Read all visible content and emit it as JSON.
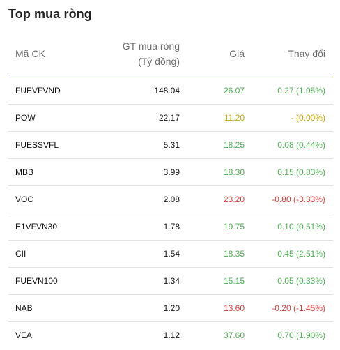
{
  "widget": {
    "title": "Top mua ròng",
    "headers": {
      "code": "Mã CK",
      "value_line1": "GT mua ròng",
      "value_line2": "(Tỷ đồng)",
      "price": "Giá",
      "change": "Thay đổi"
    },
    "colors": {
      "up": "#4caf50",
      "down": "#e53935",
      "ref": "#c9a400",
      "header_rule": "#3a3f8a"
    },
    "rows": [
      {
        "code": "FUEVFVND",
        "value": "148.04",
        "price": "26.07",
        "change": "0.27 (1.05%)",
        "trend": "up"
      },
      {
        "code": "POW",
        "value": "22.17",
        "price": "11.20",
        "change": "- (0.00%)",
        "trend": "ref"
      },
      {
        "code": "FUESSVFL",
        "value": "5.31",
        "price": "18.25",
        "change": "0.08 (0.44%)",
        "trend": "up"
      },
      {
        "code": "MBB",
        "value": "3.99",
        "price": "18.30",
        "change": "0.15 (0.83%)",
        "trend": "up"
      },
      {
        "code": "VOC",
        "value": "2.08",
        "price": "23.20",
        "change": "-0.80 (-3.33%)",
        "trend": "down"
      },
      {
        "code": "E1VFVN30",
        "value": "1.78",
        "price": "19.75",
        "change": "0.10 (0.51%)",
        "trend": "up"
      },
      {
        "code": "CII",
        "value": "1.54",
        "price": "18.35",
        "change": "0.45 (2.51%)",
        "trend": "up"
      },
      {
        "code": "FUEVN100",
        "value": "1.34",
        "price": "15.15",
        "change": "0.05 (0.33%)",
        "trend": "up"
      },
      {
        "code": "NAB",
        "value": "1.20",
        "price": "13.60",
        "change": "-0.20 (-1.45%)",
        "trend": "down"
      },
      {
        "code": "VEA",
        "value": "1.12",
        "price": "37.60",
        "change": "0.70 (1.90%)",
        "trend": "up"
      }
    ]
  }
}
